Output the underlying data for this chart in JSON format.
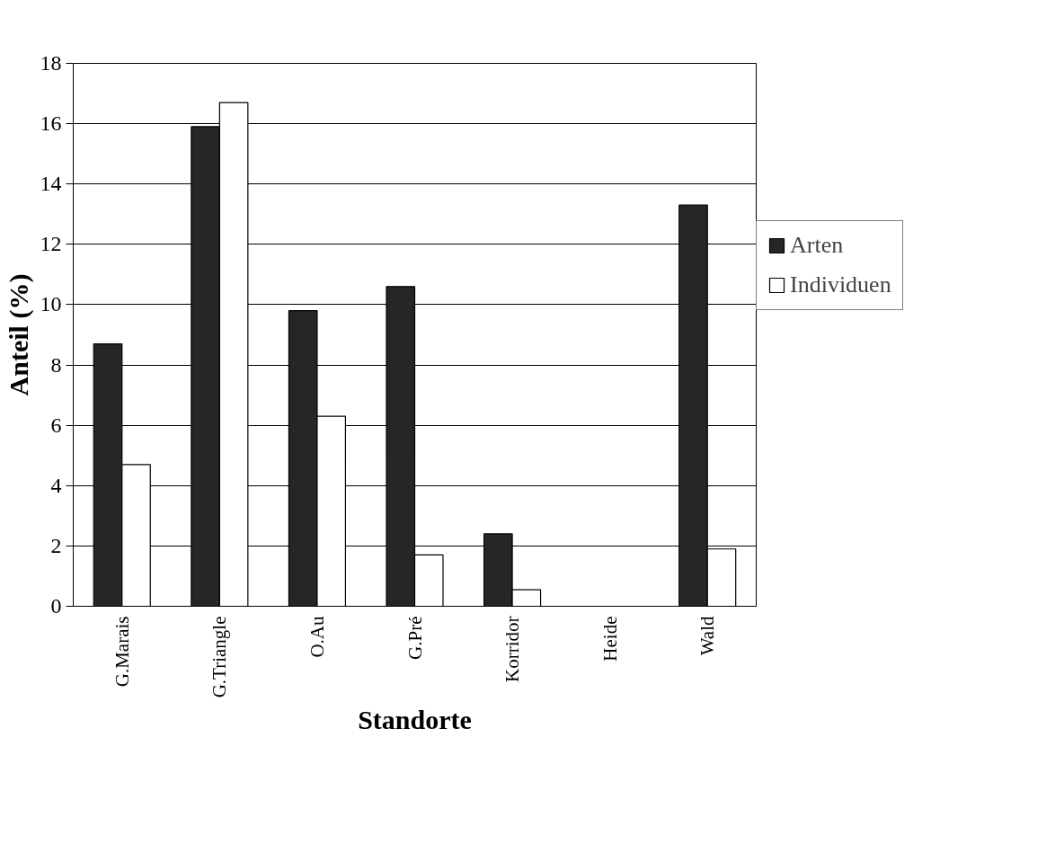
{
  "chart_data": {
    "type": "bar",
    "xlabel": "Standorte",
    "ylabel": "Anteil (%)",
    "categories": [
      "G.Marais",
      "G.Triangle",
      "O.Au",
      "G.Pré",
      "Korridor",
      "Heide",
      "Wald"
    ],
    "series": [
      {
        "name": "Arten",
        "color": "#262626",
        "values": [
          8.7,
          15.9,
          9.8,
          10.6,
          2.4,
          null,
          13.3
        ]
      },
      {
        "name": "Individuen",
        "color": "#ffffff",
        "values": [
          4.7,
          16.7,
          6.3,
          1.7,
          0.55,
          null,
          1.9
        ]
      }
    ],
    "ylim": [
      0,
      18
    ],
    "yticks": [
      0,
      2,
      4,
      6,
      8,
      10,
      12,
      14,
      16,
      18
    ],
    "grid": "y",
    "legend": "right"
  }
}
